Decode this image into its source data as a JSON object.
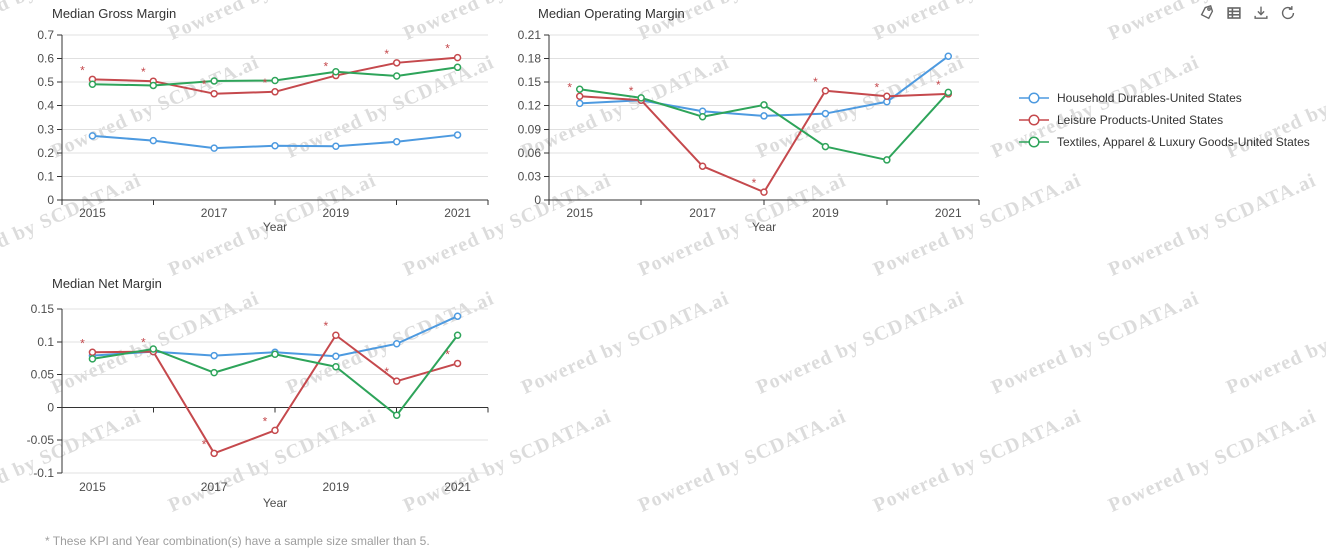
{
  "toolbar": {
    "icons": [
      "tag",
      "data-table",
      "download",
      "refresh"
    ]
  },
  "legend": {
    "items": [
      {
        "label": "Household Durables-United States",
        "color": "#4d9ae0"
      },
      {
        "label": "Leisure Products-United States",
        "color": "#c5494d"
      },
      {
        "label": "Textiles, Apparel & Luxury Goods-United States",
        "color": "#2ea45a"
      }
    ]
  },
  "footnote": "* These KPI and Year combination(s) have a sample size smaller than 5.",
  "watermark": {
    "text": "Powered by SCDATA.ai"
  },
  "chart_data": [
    {
      "type": "line",
      "title": "Median Gross Margin",
      "xlabel": "Year",
      "x": [
        2015,
        2016,
        2017,
        2018,
        2019,
        2020,
        2021
      ],
      "x_labels_shown": [
        "2015",
        "2017",
        "2019",
        "2021"
      ],
      "ylim": [
        0,
        0.7
      ],
      "yticks": [
        "0",
        "0.1",
        "0.2",
        "0.3",
        "0.4",
        "0.5",
        "0.6",
        "0.7"
      ],
      "grid": true,
      "legend_position": "right",
      "series": [
        {
          "name": "Household Durables-United States",
          "color": "#4d9ae0",
          "values": [
            0.272,
            0.252,
            0.22,
            0.23,
            0.228,
            0.247,
            0.276
          ]
        },
        {
          "name": "Leisure Products-United States",
          "color": "#c5494d",
          "values": [
            0.512,
            0.504,
            0.451,
            0.459,
            0.528,
            0.582,
            0.604
          ]
        },
        {
          "name": "Textiles, Apparel & Luxury Goods-United States",
          "color": "#2ea45a",
          "values": [
            0.491,
            0.486,
            0.505,
            0.507,
            0.544,
            0.526,
            0.563
          ]
        }
      ],
      "flag_series": "Leisure Products-United States",
      "flag_marker": "*",
      "flagged_years": [
        2015,
        2016,
        2017,
        2018,
        2019,
        2020,
        2021
      ]
    },
    {
      "type": "line",
      "title": "Median Operating Margin",
      "xlabel": "Year",
      "x": [
        2015,
        2016,
        2017,
        2018,
        2019,
        2020,
        2021
      ],
      "x_labels_shown": [
        "2015",
        "2017",
        "2019",
        "2021"
      ],
      "ylim": [
        0,
        0.21
      ],
      "yticks": [
        "0",
        "0.03",
        "0.06",
        "0.09",
        "0.12",
        "0.15",
        "0.18",
        "0.21"
      ],
      "grid": true,
      "legend_position": "right",
      "series": [
        {
          "name": "Household Durables-United States",
          "color": "#4d9ae0",
          "values": [
            0.123,
            0.127,
            0.113,
            0.107,
            0.11,
            0.125,
            0.183
          ]
        },
        {
          "name": "Leisure Products-United States",
          "color": "#c5494d",
          "values": [
            0.132,
            0.127,
            0.043,
            0.01,
            0.139,
            0.132,
            0.135
          ]
        },
        {
          "name": "Textiles, Apparel & Luxury Goods-United States",
          "color": "#2ea45a",
          "values": [
            0.141,
            0.13,
            0.106,
            0.121,
            0.068,
            0.051,
            0.137
          ]
        }
      ],
      "flag_series": "Leisure Products-United States",
      "flag_marker": "*",
      "flagged_years": [
        2015,
        2016,
        2018,
        2019,
        2020,
        2021
      ]
    },
    {
      "type": "line",
      "title": "Median Net Margin",
      "xlabel": "Year",
      "x": [
        2015,
        2016,
        2017,
        2018,
        2019,
        2020,
        2021
      ],
      "x_labels_shown": [
        "2015",
        "2017",
        "2019",
        "2021"
      ],
      "ylim": [
        -0.1,
        0.15
      ],
      "yticks": [
        "-0.1",
        "-0.05",
        "0",
        "0.05",
        "0.1",
        "0.15"
      ],
      "grid": true,
      "legend_position": "right",
      "series": [
        {
          "name": "Household Durables-United States",
          "color": "#4d9ae0",
          "values": [
            0.079,
            0.085,
            0.079,
            0.084,
            0.078,
            0.097,
            0.139
          ]
        },
        {
          "name": "Leisure Products-United States",
          "color": "#c5494d",
          "values": [
            0.084,
            0.085,
            -0.07,
            -0.035,
            0.11,
            0.04,
            0.067
          ]
        },
        {
          "name": "Textiles, Apparel & Luxury Goods-United States",
          "color": "#2ea45a",
          "values": [
            0.074,
            0.089,
            0.053,
            0.081,
            0.062,
            -0.012,
            0.11
          ]
        }
      ],
      "flag_series": "Leisure Products-United States",
      "flag_marker": "*",
      "flagged_years": [
        2015,
        2016,
        2017,
        2018,
        2019,
        2020,
        2021
      ]
    }
  ]
}
